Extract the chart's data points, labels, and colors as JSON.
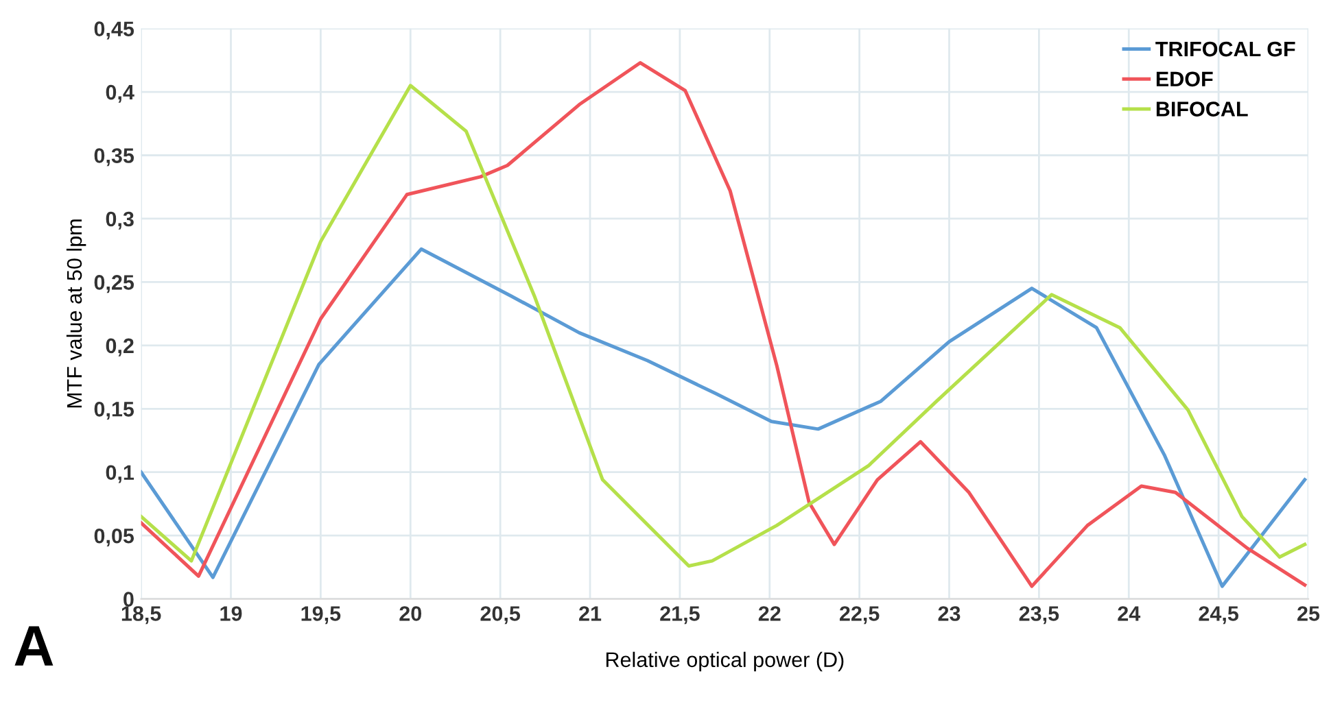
{
  "chart_data": {
    "type": "line",
    "xlabel": "Relative optical power (D)",
    "ylabel": "MTF value at 50 lpm",
    "annotations": [
      "A"
    ],
    "xlim": [
      18.5,
      25
    ],
    "ylim": [
      0,
      0.45
    ],
    "xticks": [
      {
        "value": 18.5,
        "label": "18,5"
      },
      {
        "value": 19,
        "label": "19"
      },
      {
        "value": 19.5,
        "label": "19,5"
      },
      {
        "value": 20,
        "label": "20"
      },
      {
        "value": 20.5,
        "label": "20,5"
      },
      {
        "value": 21,
        "label": "21"
      },
      {
        "value": 21.5,
        "label": "21,5"
      },
      {
        "value": 22,
        "label": "22"
      },
      {
        "value": 22.5,
        "label": "22,5"
      },
      {
        "value": 23,
        "label": "23"
      },
      {
        "value": 23.5,
        "label": "23,5"
      },
      {
        "value": 24,
        "label": "24"
      },
      {
        "value": 24.5,
        "label": "24,5"
      },
      {
        "value": 25,
        "label": "25"
      }
    ],
    "yticks": [
      0,
      {
        "value": 0.05,
        "label": "0,05"
      },
      {
        "value": 0.1,
        "label": "0,1"
      },
      {
        "value": 0.15,
        "label": "0,15"
      },
      {
        "value": 0.2,
        "label": "0,2"
      },
      {
        "value": 0.25,
        "label": "0,25"
      },
      {
        "value": 0.3,
        "label": "0,3"
      },
      {
        "value": 0.35,
        "label": "0,35"
      },
      {
        "value": 0.4,
        "label": "0,4"
      },
      {
        "value": 0.45,
        "label": "0,45"
      }
    ],
    "grid": true,
    "legend": "top right",
    "marker": "none",
    "line_style": "solid",
    "series": [
      {
        "name": "TRIFOCAL GF",
        "color": "#5b9bd5",
        "x": [
          18.5,
          18.9,
          19.49,
          20.06,
          20.56,
          20.94,
          21.32,
          21.7,
          22.01,
          22.27,
          22.62,
          23.0,
          23.46,
          23.82,
          24.2,
          24.52,
          24.98
        ],
        "values": [
          0.1,
          0.017,
          0.185,
          0.276,
          0.239,
          0.21,
          0.188,
          0.162,
          0.14,
          0.134,
          0.156,
          0.203,
          0.245,
          0.214,
          0.113,
          0.01,
          0.094
        ]
      },
      {
        "name": "EDOF",
        "color": "#f0545a",
        "x": [
          18.5,
          18.82,
          19.5,
          19.98,
          20.39,
          20.54,
          20.94,
          21.28,
          21.53,
          21.78,
          22.04,
          22.22,
          22.36,
          22.6,
          22.84,
          23.11,
          23.46,
          23.77,
          24.07,
          24.26,
          24.66,
          24.98
        ],
        "values": [
          0.06,
          0.018,
          0.221,
          0.319,
          0.333,
          0.342,
          0.39,
          0.423,
          0.401,
          0.322,
          0.184,
          0.076,
          0.043,
          0.094,
          0.124,
          0.084,
          0.01,
          0.058,
          0.089,
          0.084,
          0.04,
          0.011
        ]
      },
      {
        "name": "BIFOCAL",
        "color": "#b5e04a",
        "x": [
          18.5,
          18.78,
          19.5,
          20.0,
          20.31,
          20.69,
          21.07,
          21.55,
          21.68,
          22.04,
          22.55,
          22.93,
          23.57,
          23.95,
          24.33,
          24.63,
          24.84,
          24.98
        ],
        "values": [
          0.065,
          0.03,
          0.282,
          0.405,
          0.369,
          0.239,
          0.094,
          0.026,
          0.03,
          0.058,
          0.105,
          0.156,
          0.24,
          0.214,
          0.149,
          0.065,
          0.033,
          0.043
        ]
      }
    ]
  }
}
